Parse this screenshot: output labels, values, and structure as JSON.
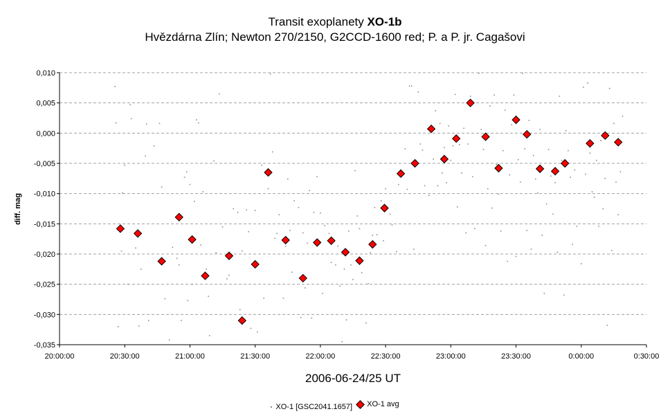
{
  "chart_data": {
    "type": "scatter",
    "title_prefix": "Transit exoplanety ",
    "title_bold": "XO-1b",
    "subtitle": "Hvězdárna Zlín; Newton 270/2150, G2CCD-1600 red; P. a P. jr. Cagašovi",
    "xlabel": "2006-06-24/25 UT",
    "ylabel": "diff. mag",
    "x_unit": "time of day (minutes since 20:00:00)",
    "xlim": [
      0,
      270
    ],
    "x_ticks": [
      0,
      30,
      60,
      90,
      120,
      150,
      180,
      210,
      240,
      270
    ],
    "x_tick_labels": [
      "20:00:00",
      "20:30:00",
      "21:00:00",
      "21:30:00",
      "22:00:00",
      "22:30:00",
      "23:00:00",
      "23:30:00",
      "0:00:00",
      "0:30:00"
    ],
    "ylim": [
      -0.035,
      0.01
    ],
    "y_ticks": [
      -0.035,
      -0.03,
      -0.025,
      -0.02,
      -0.015,
      -0.01,
      -0.005,
      0.0,
      0.005,
      0.01
    ],
    "y_tick_labels": [
      "-0,035",
      "-0,030",
      "-0,025",
      "-0,020",
      "-0,015",
      "-0,010",
      "-0,005",
      "0,000",
      "0,005",
      "0,010"
    ],
    "grid": "horizontal dashed",
    "legend_position": "bottom-center",
    "series": [
      {
        "name": "XO-1 [GSC2041.1657]",
        "marker": "small dot",
        "color": "#8c8c8c",
        "points": [
          [
            25.5,
            0.0077
          ],
          [
            26,
            0.0017
          ],
          [
            27,
            -0.032
          ],
          [
            28.5,
            -0.0195
          ],
          [
            29,
            -0.0099
          ],
          [
            30,
            -0.0053
          ],
          [
            31.5,
            -0.025
          ],
          [
            32.5,
            0.0047
          ],
          [
            33,
            0.0024
          ],
          [
            35,
            -0.019
          ],
          [
            36.5,
            -0.0319
          ],
          [
            37.5,
            -0.0225
          ],
          [
            39.5,
            -0.0038
          ],
          [
            40,
            0.0015
          ],
          [
            41,
            -0.031
          ],
          [
            43.5,
            -0.0021
          ],
          [
            46,
            0.0016
          ],
          [
            47,
            -0.0089
          ],
          [
            48.5,
            -0.0274
          ],
          [
            50.5,
            -0.0342
          ],
          [
            52,
            -0.0189
          ],
          [
            54,
            -0.0207
          ],
          [
            55,
            -0.0218
          ],
          [
            56,
            -0.031
          ],
          [
            57.5,
            -0.0073
          ],
          [
            58.5,
            -0.0064
          ],
          [
            59,
            -0.0277
          ],
          [
            60,
            -0.0085
          ],
          [
            61,
            -0.025
          ],
          [
            62,
            -0.0113
          ],
          [
            63,
            0.0022
          ],
          [
            64,
            0.0017
          ],
          [
            65,
            -0.0185
          ],
          [
            66,
            -0.0097
          ],
          [
            67.5,
            -0.0225
          ],
          [
            68.5,
            -0.027
          ],
          [
            69,
            -0.0335
          ],
          [
            71,
            -0.0046
          ],
          [
            72,
            -0.0198
          ],
          [
            73.5,
            0.0065
          ],
          [
            75,
            -0.0155
          ],
          [
            77,
            -0.0241
          ],
          [
            78,
            -0.0235
          ],
          [
            80,
            -0.0125
          ],
          [
            82,
            -0.0131
          ],
          [
            83,
            -0.0292
          ],
          [
            84,
            -0.0195
          ],
          [
            86,
            -0.0127
          ],
          [
            87,
            -0.0163
          ],
          [
            88,
            -0.0323
          ],
          [
            90,
            -0.0128
          ],
          [
            91,
            -0.0329
          ],
          [
            93,
            -0.0053
          ],
          [
            94,
            -0.0273
          ],
          [
            96,
            -0.0092
          ],
          [
            97,
            0.0098
          ],
          [
            98,
            -0.0031
          ],
          [
            99,
            -0.0174
          ],
          [
            100,
            -0.0166
          ],
          [
            101,
            -0.0135
          ],
          [
            103,
            -0.0273
          ],
          [
            104,
            -0.0187
          ],
          [
            105,
            -0.0076
          ],
          [
            106,
            -0.0161
          ],
          [
            107,
            -0.023
          ],
          [
            108,
            -0.0112
          ],
          [
            110,
            -0.0123
          ],
          [
            111,
            -0.0305
          ],
          [
            112,
            -0.0165
          ],
          [
            113,
            -0.0256
          ],
          [
            114,
            -0.0182
          ],
          [
            115,
            -0.0095
          ],
          [
            116,
            -0.0306
          ],
          [
            117,
            -0.0131
          ],
          [
            118.5,
            -0.0072
          ],
          [
            120,
            -0.0132
          ],
          [
            121,
            -0.0265
          ],
          [
            122,
            -0.0153
          ],
          [
            124,
            -0.0166
          ],
          [
            125,
            -0.0214
          ],
          [
            127,
            -0.0218
          ],
          [
            128,
            -0.0187
          ],
          [
            129,
            -0.0253
          ],
          [
            130,
            -0.0345
          ],
          [
            131,
            -0.0225
          ],
          [
            132,
            -0.0309
          ],
          [
            133,
            -0.0162
          ],
          [
            134,
            -0.0218
          ],
          [
            135,
            -0.0242
          ],
          [
            136,
            -0.0062
          ],
          [
            137,
            -0.0137
          ],
          [
            138,
            -0.0158
          ],
          [
            139,
            -0.0231
          ],
          [
            141,
            -0.0314
          ],
          [
            142,
            -0.0249
          ],
          [
            143,
            -0.0198
          ],
          [
            144,
            -0.0169
          ],
          [
            145,
            -0.0123
          ],
          [
            146,
            -0.0168
          ],
          [
            148,
            -0.0112
          ],
          [
            149,
            -0.0178
          ],
          [
            150,
            -0.0092
          ],
          [
            152,
            -0.0134
          ],
          [
            153,
            -0.0152
          ],
          [
            155,
            -0.0196
          ],
          [
            156,
            -0.0085
          ],
          [
            157,
            -0.0061
          ],
          [
            158,
            -0.0067
          ],
          [
            159,
            -0.0026
          ],
          [
            160,
            -0.0093
          ],
          [
            161,
            0.0078
          ],
          [
            162,
            0.0078
          ],
          [
            163,
            -0.0192
          ],
          [
            164,
            -0.0045
          ],
          [
            165,
            0.0068
          ],
          [
            166,
            -0.0018
          ],
          [
            167,
            -0.0028
          ],
          [
            168,
            -0.0087
          ],
          [
            170,
            -0.0103
          ],
          [
            171,
            0.0006
          ],
          [
            172,
            -0.0043
          ],
          [
            173,
            0.0037
          ],
          [
            174,
            -0.0087
          ],
          [
            175,
            0.0016
          ],
          [
            176,
            -0.0066
          ],
          [
            177,
            -0.0024
          ],
          [
            178,
            -0.0082
          ],
          [
            179,
            0.0012
          ],
          [
            180,
            -0.0045
          ],
          [
            181,
            -0.0021
          ],
          [
            182,
            0.0064
          ],
          [
            183,
            -0.0122
          ],
          [
            184,
            -0.0019
          ],
          [
            185,
            -0.0066
          ],
          [
            186,
            0.0008
          ],
          [
            187,
            -0.0165
          ],
          [
            188,
            -0.0018
          ],
          [
            189,
            0.0061
          ],
          [
            190,
            -0.0072
          ],
          [
            191,
            -0.0158
          ],
          [
            193,
            0.0099
          ],
          [
            194,
            0.0006
          ],
          [
            195,
            -0.0027
          ],
          [
            196,
            -0.0186
          ],
          [
            197,
            -0.0092
          ],
          [
            198,
            0.0045
          ],
          [
            199,
            -0.0124
          ],
          [
            200,
            0.0063
          ],
          [
            201,
            -0.0052
          ],
          [
            202,
            -0.0101
          ],
          [
            203,
            -0.0162
          ],
          [
            204,
            -0.0029
          ],
          [
            205,
            0.0038
          ],
          [
            206,
            -0.0212
          ],
          [
            207,
            -0.0069
          ],
          [
            208,
            0.0014
          ],
          [
            209,
            0.0063
          ],
          [
            210,
            -0.0204
          ],
          [
            211,
            -0.0044
          ],
          [
            212,
            -0.0081
          ],
          [
            213,
            0.0099
          ],
          [
            214,
            -0.0026
          ],
          [
            215,
            -0.0161
          ],
          [
            216,
            0.0021
          ],
          [
            217,
            -0.0192
          ],
          [
            218,
            -0.0037
          ],
          [
            219,
            -0.0076
          ],
          [
            220,
            -0.0099
          ],
          [
            221,
            0.0006
          ],
          [
            222,
            -0.0169
          ],
          [
            223,
            -0.0265
          ],
          [
            224,
            -0.0117
          ],
          [
            225,
            -0.0027
          ],
          [
            226,
            -0.0071
          ],
          [
            227,
            -0.0134
          ],
          [
            228,
            -0.0082
          ],
          [
            229,
            -0.0197
          ],
          [
            230,
            0.0061
          ],
          [
            231,
            -0.0045
          ],
          [
            232,
            -0.0268
          ],
          [
            233,
            0.0004
          ],
          [
            234,
            -0.0029
          ],
          [
            235,
            -0.0073
          ],
          [
            236,
            -0.0184
          ],
          [
            237,
            -0.0061
          ],
          [
            238,
            -0.0154
          ],
          [
            240,
            -0.0216
          ],
          [
            241,
            0.0076
          ],
          [
            242,
            -0.0068
          ],
          [
            243,
            0.0083
          ],
          [
            244,
            -0.0033
          ],
          [
            245,
            -0.0097
          ],
          [
            246,
            -0.0106
          ],
          [
            247,
            -0.0045
          ],
          [
            248,
            -0.0154
          ],
          [
            249,
            -0.0012
          ],
          [
            250,
            -0.0125
          ],
          [
            251,
            -0.0075
          ],
          [
            252,
            -0.0318
          ],
          [
            253,
            0.0074
          ],
          [
            254,
            -0.0194
          ],
          [
            255,
            0.0016
          ],
          [
            256,
            -0.0081
          ],
          [
            257,
            -0.0135
          ],
          [
            258,
            -0.0064
          ],
          [
            259,
            0.0028
          ]
        ]
      },
      {
        "name": "XO-1 avg",
        "marker": "diamond",
        "color": "#ff0000",
        "points": [
          [
            28,
            -0.0158
          ],
          [
            36,
            -0.0166
          ],
          [
            47,
            -0.0212
          ],
          [
            55,
            -0.0139
          ],
          [
            61,
            -0.0176
          ],
          [
            67,
            -0.0236
          ],
          [
            78,
            -0.0203
          ],
          [
            84,
            -0.031
          ],
          [
            90,
            -0.0217
          ],
          [
            96,
            -0.0065
          ],
          [
            104,
            -0.0177
          ],
          [
            112,
            -0.024
          ],
          [
            118.5,
            -0.0181
          ],
          [
            125,
            -0.0178
          ],
          [
            131.5,
            -0.0197
          ],
          [
            138,
            -0.0211
          ],
          [
            144,
            -0.0184
          ],
          [
            149.5,
            -0.0124
          ],
          [
            157,
            -0.0067
          ],
          [
            163.5,
            -0.005
          ],
          [
            171,
            0.0007
          ],
          [
            177,
            -0.0043
          ],
          [
            182.5,
            -0.0009
          ],
          [
            189,
            0.005
          ],
          [
            196,
            -0.0006
          ],
          [
            202,
            -0.0058
          ],
          [
            210,
            0.0022
          ],
          [
            215,
            -0.0002
          ],
          [
            221,
            -0.0059
          ],
          [
            228,
            -0.0063
          ],
          [
            232.5,
            -0.005
          ],
          [
            244,
            -0.0017
          ],
          [
            251,
            -0.0004
          ],
          [
            257,
            -0.0015
          ]
        ]
      }
    ]
  }
}
